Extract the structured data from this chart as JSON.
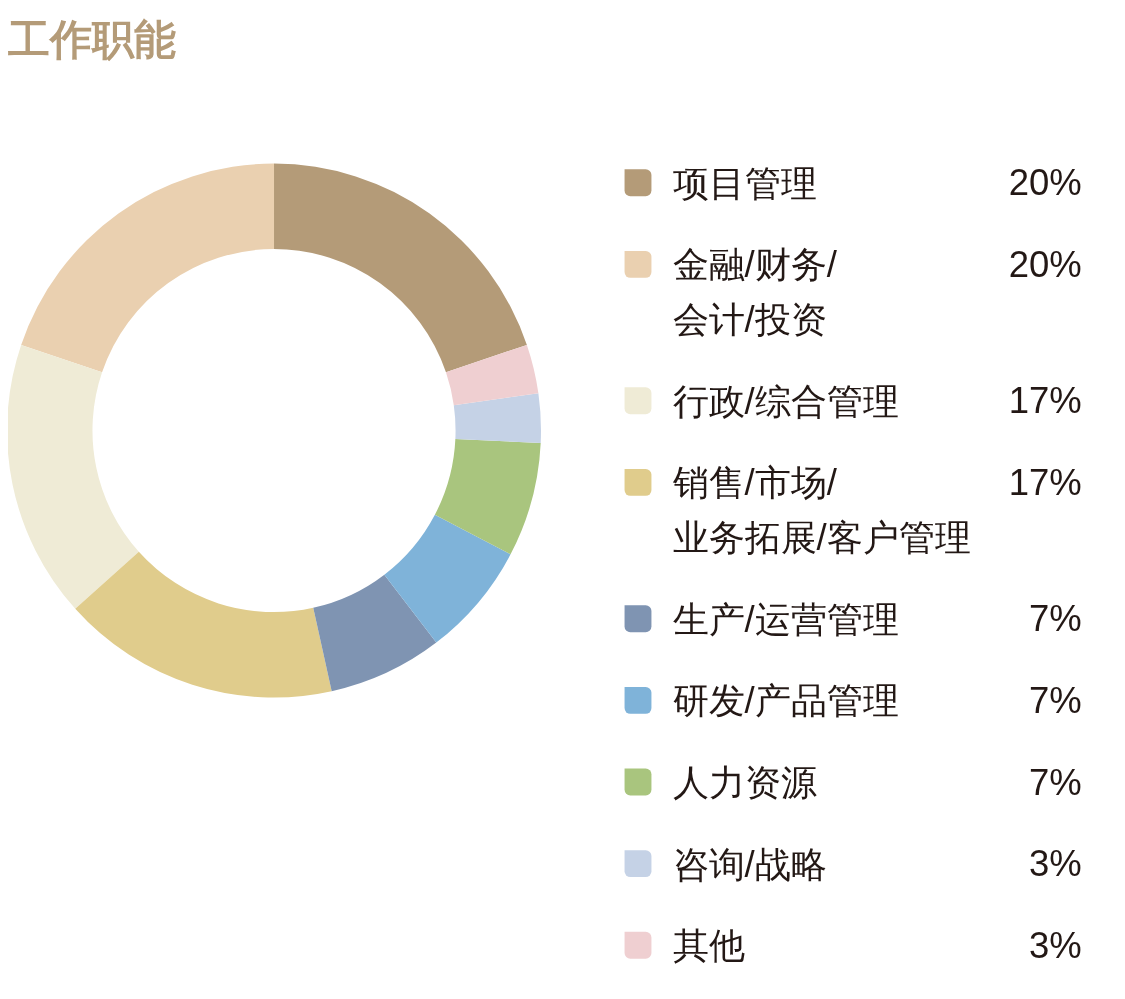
{
  "chart_data": {
    "type": "donut",
    "title": "工作职能",
    "categories": [
      "项目管理",
      "金融/财务/会计/投资",
      "行政/综合管理",
      "销售/市场/业务拓展/客户管理",
      "生产/运营管理",
      "研发/产品管理",
      "人力资源",
      "咨询/战略",
      "其他"
    ],
    "values": [
      20,
      20,
      17,
      17,
      7,
      7,
      7,
      3,
      3
    ],
    "colors": [
      "#b49b78",
      "#ead0b0",
      "#efebd6",
      "#e0cc8c",
      "#7f94b2",
      "#7fb3d9",
      "#a9c57e",
      "#c5d2e6",
      "#efcfd1"
    ],
    "value_labels": [
      "20%",
      "20%",
      "17%",
      "17%",
      "7%",
      "7%",
      "7%",
      "3%",
      "3%"
    ],
    "legend": "right"
  }
}
